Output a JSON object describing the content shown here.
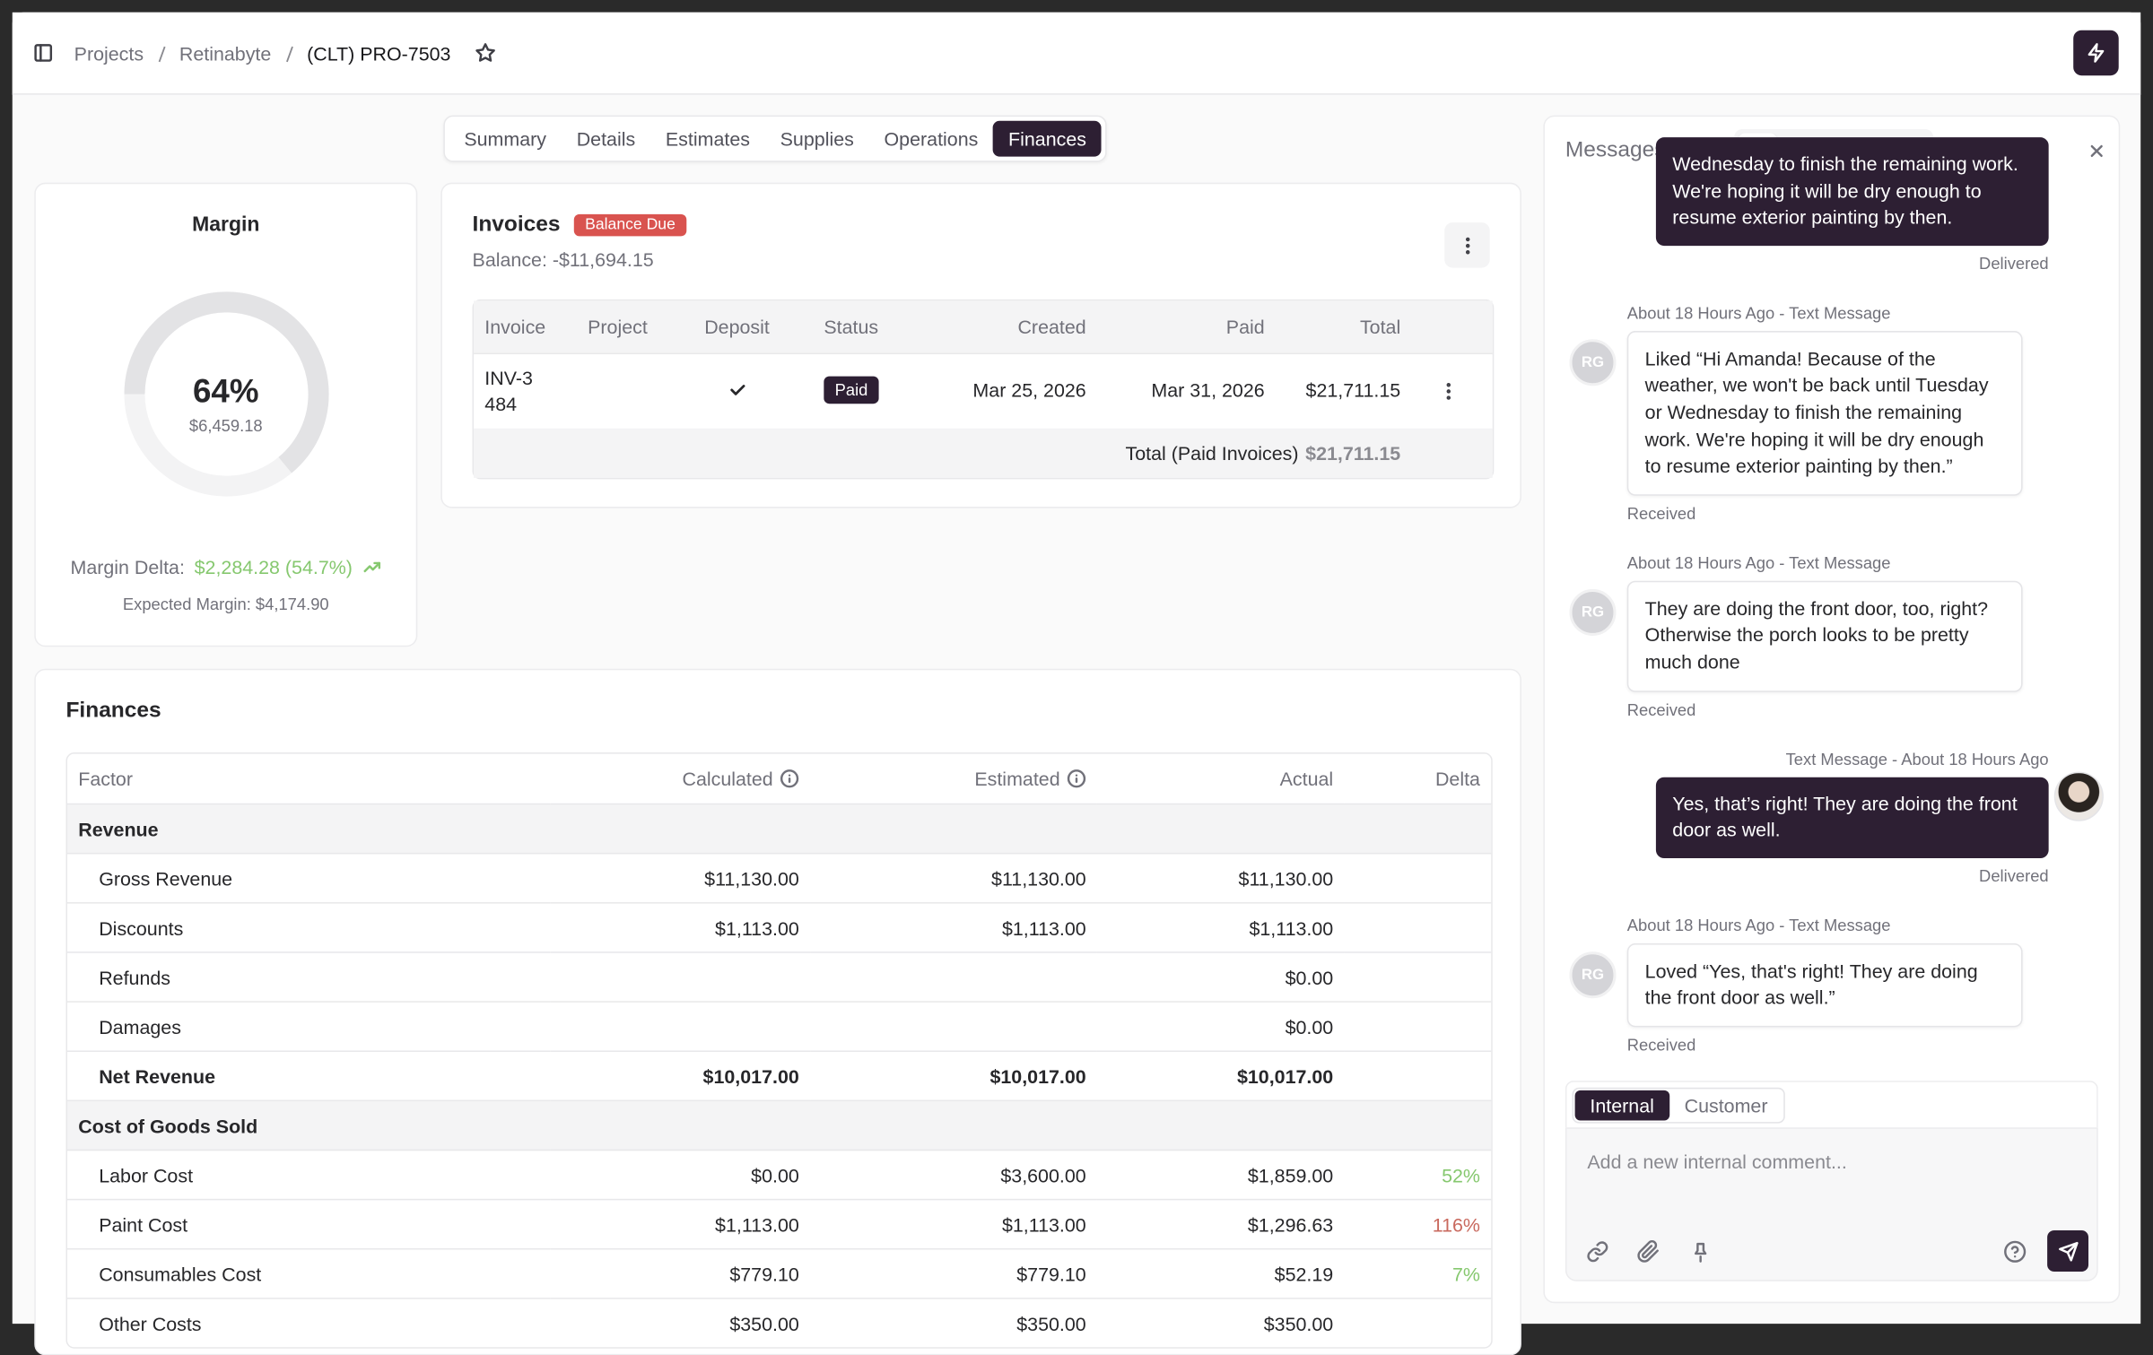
{
  "breadcrumb": [
    "Projects",
    "Retinabyte",
    "(CLT) PRO-7503"
  ],
  "tabs": [
    "Summary",
    "Details",
    "Estimates",
    "Supplies",
    "Operations",
    "Finances"
  ],
  "active_tab": "Finances",
  "margin": {
    "title": "Margin",
    "percent": 64,
    "percent_label": "64%",
    "amount": "$6,459.18",
    "delta_label": "Margin Delta:",
    "delta_value": "$2,284.28 (54.7%)",
    "delta_color": "#86c86f",
    "expected": "Expected Margin: $4,174.90"
  },
  "invoices": {
    "title": "Invoices",
    "badge": "Balance Due",
    "balance": "Balance: -$11,694.15",
    "columns": [
      "Invoice",
      "Project",
      "Deposit",
      "Status",
      "Created",
      "Paid",
      "Total"
    ],
    "rows": [
      {
        "invoice": "INV-3484",
        "deposit": true,
        "status": "Paid",
        "created": "Mar 25, 2026",
        "paid": "Mar 31, 2026",
        "total": "$21,711.15"
      }
    ],
    "total_label": "Total (Paid Invoices)",
    "total_value": "$21,711.15"
  },
  "finances": {
    "title": "Finances",
    "columns": [
      "Factor",
      "Calculated",
      "Estimated",
      "Actual",
      "Delta"
    ],
    "sections": [
      {
        "name": "Revenue",
        "rows": [
          {
            "factor": "Gross Revenue",
            "calculated": "$11,130.00",
            "estimated": "$11,130.00",
            "actual": "$11,130.00"
          },
          {
            "factor": "Discounts",
            "calculated": "$1,113.00",
            "estimated": "$1,113.00",
            "actual": "$1,113.00"
          },
          {
            "factor": "Refunds",
            "actual": "$0.00"
          },
          {
            "factor": "Damages",
            "actual": "$0.00"
          },
          {
            "factor": "Net Revenue",
            "calculated": "$10,017.00",
            "estimated": "$10,017.00",
            "actual": "$10,017.00",
            "bold": true
          }
        ]
      },
      {
        "name": "Cost of Goods Sold",
        "rows": [
          {
            "factor": "Labor Cost",
            "calculated": "$0.00",
            "estimated": "$3,600.00",
            "actual": "$1,859.00",
            "delta": "52%",
            "delta_color": "#86c86f"
          },
          {
            "factor": "Paint Cost",
            "calculated": "$1,113.00",
            "estimated": "$1,113.00",
            "actual": "$1,296.63",
            "delta": "116%",
            "delta_color": "#c9695e"
          },
          {
            "factor": "Consumables Cost",
            "calculated": "$779.10",
            "estimated": "$779.10",
            "actual": "$52.19",
            "delta": "7%",
            "delta_color": "#86c86f"
          },
          {
            "factor": "Other Costs",
            "calculated": "$350.00",
            "estimated": "$350.00",
            "actual": "$350.00"
          }
        ]
      }
    ]
  },
  "messages": {
    "title": "Messages",
    "items": [
      {
        "direction": "sent",
        "text": "Wednesday to finish the remaining work. We're hoping it will be dry enough to resume exterior painting by then.",
        "status": "Delivered"
      },
      {
        "direction": "received",
        "meta": "About 18 Hours Ago - Text Message",
        "initials": "RG",
        "text": "Liked “Hi Amanda! Because of the weather, we won't be back until Tuesday or Wednesday to finish the remaining work. We're hoping it will be dry enough to resume exterior painting by then.”",
        "status": "Received"
      },
      {
        "direction": "received",
        "meta": "About 18 Hours Ago - Text Message",
        "initials": "RG",
        "text": "They are doing the front door, too, right? Otherwise the porch looks to be pretty much done",
        "status": "Received"
      },
      {
        "direction": "sent",
        "meta": "Text Message - About 18 Hours Ago",
        "text": "Yes, that’s right! They are doing the front door as well.",
        "status": "Delivered",
        "avatar": true
      },
      {
        "direction": "received",
        "meta": "About 18 Hours Ago - Text Message",
        "initials": "RG",
        "text": "Loved “Yes, that's right! They are doing the front door as well.”",
        "status": "Received"
      }
    ],
    "compose_tabs": [
      "Internal",
      "Customer"
    ],
    "active_compose_tab": "Internal",
    "placeholder": "Add a new internal comment..."
  }
}
